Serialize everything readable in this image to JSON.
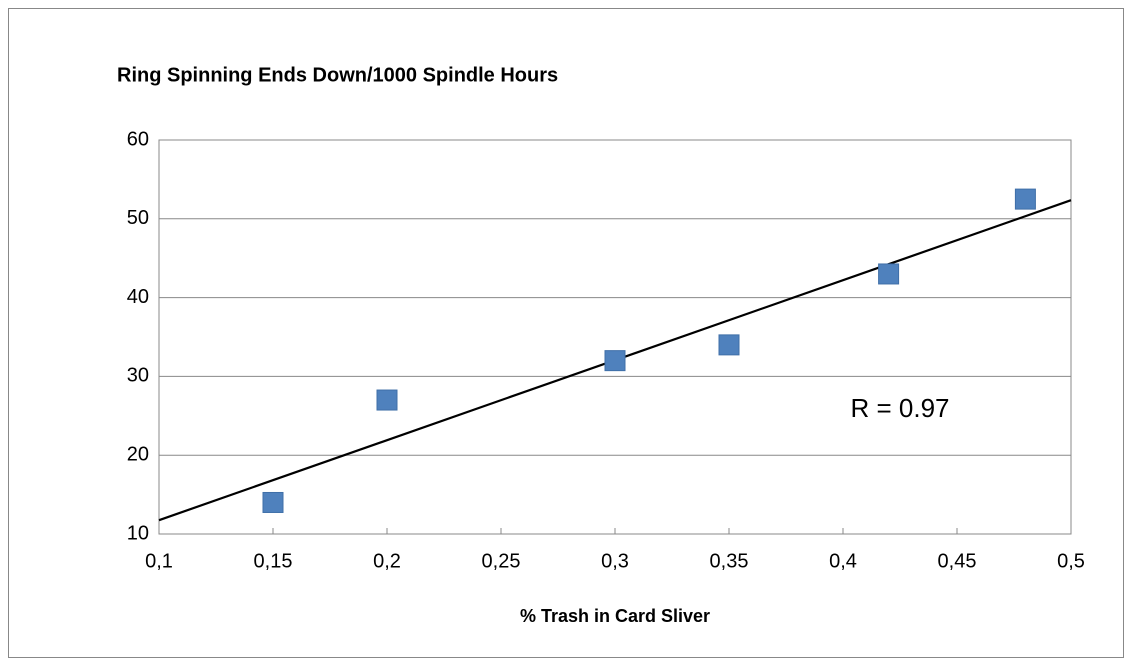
{
  "chart_data": {
    "type": "scatter",
    "title": "Ring Spinning Ends Down/1000 Spindle Hours",
    "x_label": "% Trash in Card Sliver",
    "annotation": "R = 0.97",
    "x": [
      0.15,
      0.2,
      0.3,
      0.35,
      0.42,
      0.48
    ],
    "values": [
      14,
      27,
      32,
      34,
      43,
      52.5
    ],
    "color": "#4f81bd",
    "trendline": "linear",
    "trendline_color": "#000000",
    "xlim": [
      0.1,
      0.5
    ],
    "xticks": [
      {
        "value": 0.1,
        "label": "0,1"
      },
      {
        "value": 0.15,
        "label": "0,15"
      },
      {
        "value": 0.2,
        "label": "0,2"
      },
      {
        "value": 0.25,
        "label": "0,25"
      },
      {
        "value": 0.3,
        "label": "0,3"
      },
      {
        "value": 0.35,
        "label": "0,35"
      },
      {
        "value": 0.4,
        "label": "0,4"
      },
      {
        "value": 0.45,
        "label": "0,45"
      },
      {
        "value": 0.5,
        "label": "0,5"
      }
    ],
    "ylim": [
      10,
      60
    ],
    "yticks": [
      10,
      20,
      30,
      40,
      50,
      60
    ],
    "grid": true
  }
}
